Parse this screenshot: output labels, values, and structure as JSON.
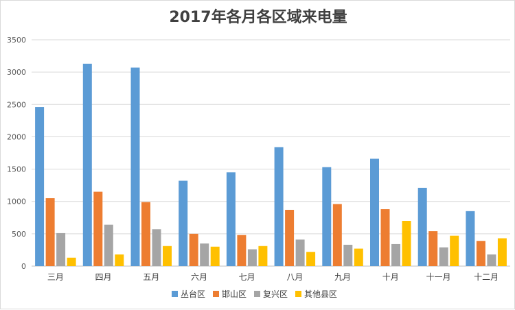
{
  "chart_data": {
    "type": "bar",
    "title": "2017年各月各区域来电量",
    "xlabel": "",
    "ylabel": "",
    "ylim": [
      0,
      3500
    ],
    "yticks": [
      0,
      500,
      1000,
      1500,
      2000,
      2500,
      3000,
      3500
    ],
    "grid": true,
    "legend_position": "bottom",
    "categories": [
      "三月",
      "四月",
      "五月",
      "六月",
      "七月",
      "八月",
      "九月",
      "十月",
      "十一月",
      "十二月"
    ],
    "series": [
      {
        "name": "丛台区",
        "color": "#5b9bd5",
        "values": [
          2460,
          3130,
          3070,
          1320,
          1450,
          1840,
          1530,
          1660,
          1210,
          850
        ]
      },
      {
        "name": "邯山区",
        "color": "#ed7d31",
        "values": [
          1050,
          1150,
          990,
          500,
          480,
          870,
          960,
          880,
          540,
          390
        ]
      },
      {
        "name": "复兴区",
        "color": "#a5a5a5",
        "values": [
          510,
          640,
          570,
          350,
          260,
          410,
          330,
          340,
          290,
          180
        ]
      },
      {
        "name": "其他县区",
        "color": "#ffc000",
        "values": [
          130,
          180,
          310,
          300,
          310,
          220,
          270,
          700,
          470,
          430
        ]
      }
    ]
  }
}
